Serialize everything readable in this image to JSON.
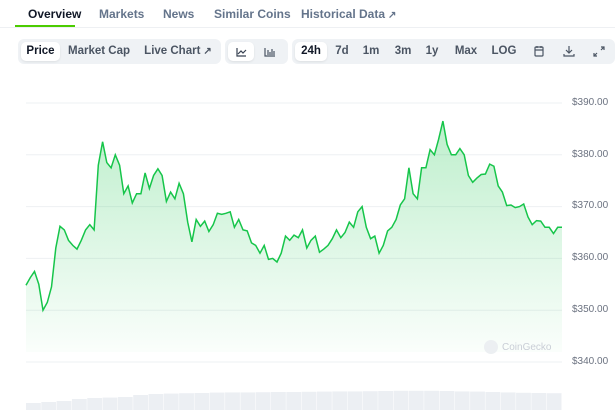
{
  "tabs": [
    {
      "label": "Overview",
      "active": true
    },
    {
      "label": "Markets"
    },
    {
      "label": "News"
    },
    {
      "label": "Similar Coins"
    },
    {
      "label": "Historical Data",
      "external": true
    }
  ],
  "toolbar": {
    "chart_type": [
      {
        "label": "Price",
        "selected": true
      },
      {
        "label": "Market Cap"
      },
      {
        "label": "Live Chart",
        "external": true
      }
    ],
    "view_icons": [
      "line-chart-icon",
      "candlestick-chart-icon"
    ],
    "ranges": [
      {
        "label": "24h",
        "selected": true
      },
      {
        "label": "7d"
      },
      {
        "label": "1m"
      },
      {
        "label": "3m"
      },
      {
        "label": "1y"
      },
      {
        "label": "Max"
      },
      {
        "label": "LOG"
      }
    ],
    "action_icons": [
      "calendar-icon",
      "download-icon",
      "fullscreen-icon"
    ]
  },
  "chart_data": {
    "type": "area",
    "y_ticks": [
      "$390.00",
      "$380.00",
      "$370.00",
      "$360.00",
      "$350.00",
      "$340.00"
    ],
    "ylim": [
      340,
      390
    ],
    "grid": true,
    "line_color": "#16c54a",
    "watermark": "CoinGecko",
    "prices": [
      354.8,
      356.3,
      357.5,
      355,
      350,
      351.5,
      354.5,
      362,
      366.2,
      365.5,
      363.5,
      362.5,
      361.8,
      363.5,
      365.5,
      366.5,
      365.5,
      378,
      382.5,
      378.5,
      377.5,
      380,
      378,
      372.5,
      374,
      370.7,
      372.5,
      372.5,
      376.5,
      373.5,
      376,
      377.3,
      376,
      371,
      372.8,
      371.5,
      374.5,
      372.5,
      367,
      363.2,
      367.5,
      366.2,
      367.2,
      365.2,
      366.5,
      368.7,
      368.5,
      368.7,
      369,
      366,
      367.5,
      365.5,
      365.3,
      363,
      362.5,
      361,
      362.5,
      359.8,
      360,
      359.3,
      361,
      364.3,
      363.5,
      364.5,
      364,
      365.5,
      362,
      363.5,
      364.3,
      361.2,
      361.8,
      362.5,
      363.8,
      365.5,
      364,
      365,
      367,
      366,
      369,
      370,
      366,
      363.8,
      364.3,
      361,
      362.5,
      365.3,
      366,
      367.5,
      370.3,
      371.5,
      377.5,
      372.5,
      371.5,
      377.5,
      377.5,
      381,
      380,
      383,
      386.5,
      382,
      380,
      380,
      381.2,
      380,
      376,
      374.7,
      375.5,
      376.2,
      376.3,
      378.2,
      377.8,
      374,
      372.8,
      370.2,
      370.3,
      369.8,
      370,
      370.5,
      368,
      366.5,
      367.3,
      367.2,
      366,
      366,
      364.8,
      366,
      366
    ],
    "volume_relative": [
      0.35,
      0.4,
      0.45,
      0.55,
      0.6,
      0.62,
      0.65,
      0.75,
      0.8,
      0.82,
      0.84,
      0.85,
      0.87,
      0.88,
      0.88,
      0.89,
      0.9,
      0.9,
      0.91,
      0.92,
      0.93,
      0.93,
      0.94,
      0.95,
      0.96,
      0.96,
      0.96,
      0.95,
      0.93,
      0.92,
      0.9,
      0.88,
      0.86,
      0.85,
      0.84
    ]
  }
}
